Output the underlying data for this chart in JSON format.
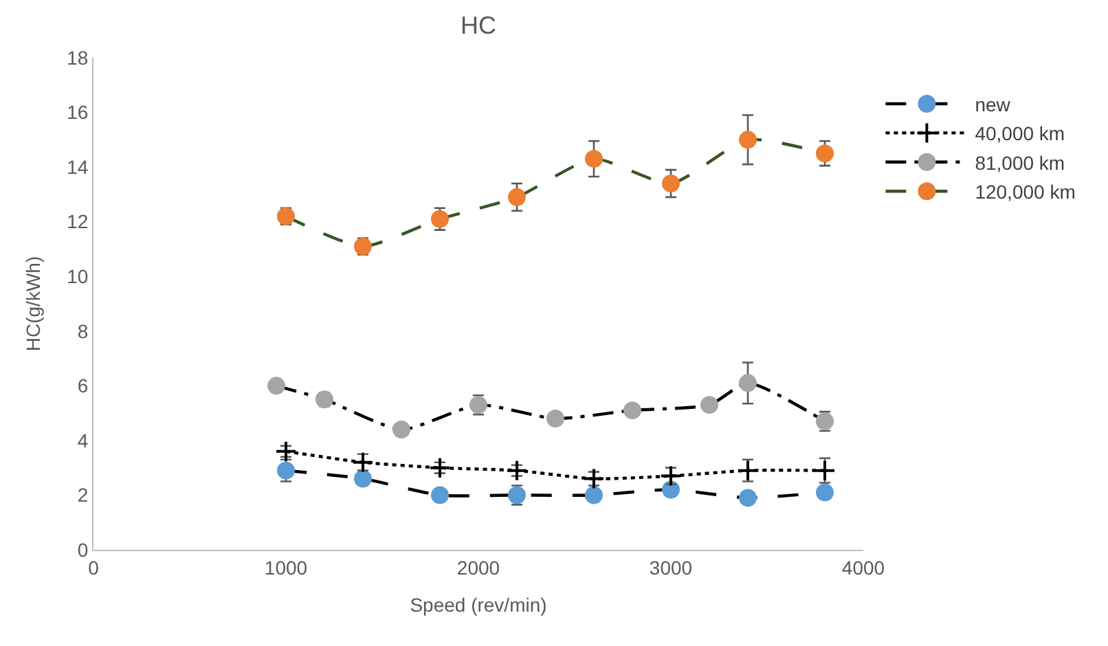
{
  "chart_data": {
    "type": "line",
    "title": "HC",
    "xlabel": "Speed (rev/min)",
    "ylabel": "HC(g/kWh)",
    "xlim": [
      0,
      4000
    ],
    "xticks": [
      0,
      1000,
      2000,
      3000,
      4000
    ],
    "ylim": [
      0,
      18
    ],
    "yticks": [
      0,
      2,
      4,
      6,
      8,
      10,
      12,
      14,
      16,
      18
    ],
    "grid": false,
    "legend": "right",
    "series": [
      {
        "name": "new",
        "color": "#000000",
        "colors": [
          "#5b9bd5",
          "#5b9bd5",
          "#5b9bd5",
          "#5b9bd5",
          "#5b9bd5",
          "#5b9bd5",
          "#5b9bd5",
          "#5b9bd5"
        ],
        "line_style": "dashed",
        "marker": "circle",
        "x": [
          1000,
          1400,
          1800,
          2200,
          2600,
          3000,
          3400,
          3800
        ],
        "values": [
          2.9,
          2.6,
          2.0,
          2.0,
          2.0,
          2.2,
          1.9,
          2.1
        ],
        "errors": [
          0.4,
          null,
          null,
          0.35,
          null,
          null,
          null,
          null
        ]
      },
      {
        "name": "40,000 km",
        "color": "#000000",
        "colors": [
          "#000000",
          "#000000",
          "#000000",
          "#000000",
          "#000000",
          "#000000",
          "#000000",
          "#000000"
        ],
        "line_style": "dotted",
        "marker": "cross",
        "x": [
          1000,
          1400,
          1800,
          2200,
          2600,
          3000,
          3400,
          3800
        ],
        "values": [
          3.6,
          3.2,
          3.0,
          2.9,
          2.6,
          2.7,
          2.9,
          2.9
        ],
        "errors": [
          0.2,
          0.3,
          0.2,
          0.2,
          0.25,
          0.3,
          0.4,
          0.45
        ]
      },
      {
        "name": "81,000 km",
        "color": "#000000",
        "colors": [
          "#a5a5a5",
          "#a5a5a5",
          "#a5a5a5",
          "#a5a5a5",
          "#a5a5a5",
          "#a5a5a5",
          "#a5a5a5",
          "#a5a5a5",
          "#a5a5a5"
        ],
        "line_style": "dashdot",
        "marker": "circle",
        "x": [
          950,
          1200,
          1600,
          2000,
          2400,
          2800,
          3200,
          3400,
          3800
        ],
        "values": [
          6.0,
          5.5,
          4.4,
          5.3,
          4.8,
          5.1,
          5.3,
          6.1,
          4.7
        ],
        "errors": [
          0.1,
          0.25,
          0.1,
          0.35,
          null,
          null,
          null,
          0.75,
          0.35
        ]
      },
      {
        "name": "120,000 km",
        "color": "#375623",
        "colors": [
          "#ed7d31",
          "#ed7d31",
          "#ed7d31",
          "#ed7d31",
          "#ed7d31",
          "#ed7d31",
          "#ed7d31",
          "#ed7d31"
        ],
        "line_style": "dashed",
        "marker": "circle",
        "x": [
          1000,
          1400,
          1800,
          2200,
          2600,
          3000,
          3400,
          3800
        ],
        "values": [
          12.2,
          11.1,
          12.1,
          12.9,
          14.3,
          13.4,
          15.0,
          14.5
        ],
        "errors": [
          0.3,
          0.3,
          0.4,
          0.5,
          0.65,
          0.5,
          0.9,
          0.45
        ]
      }
    ]
  }
}
